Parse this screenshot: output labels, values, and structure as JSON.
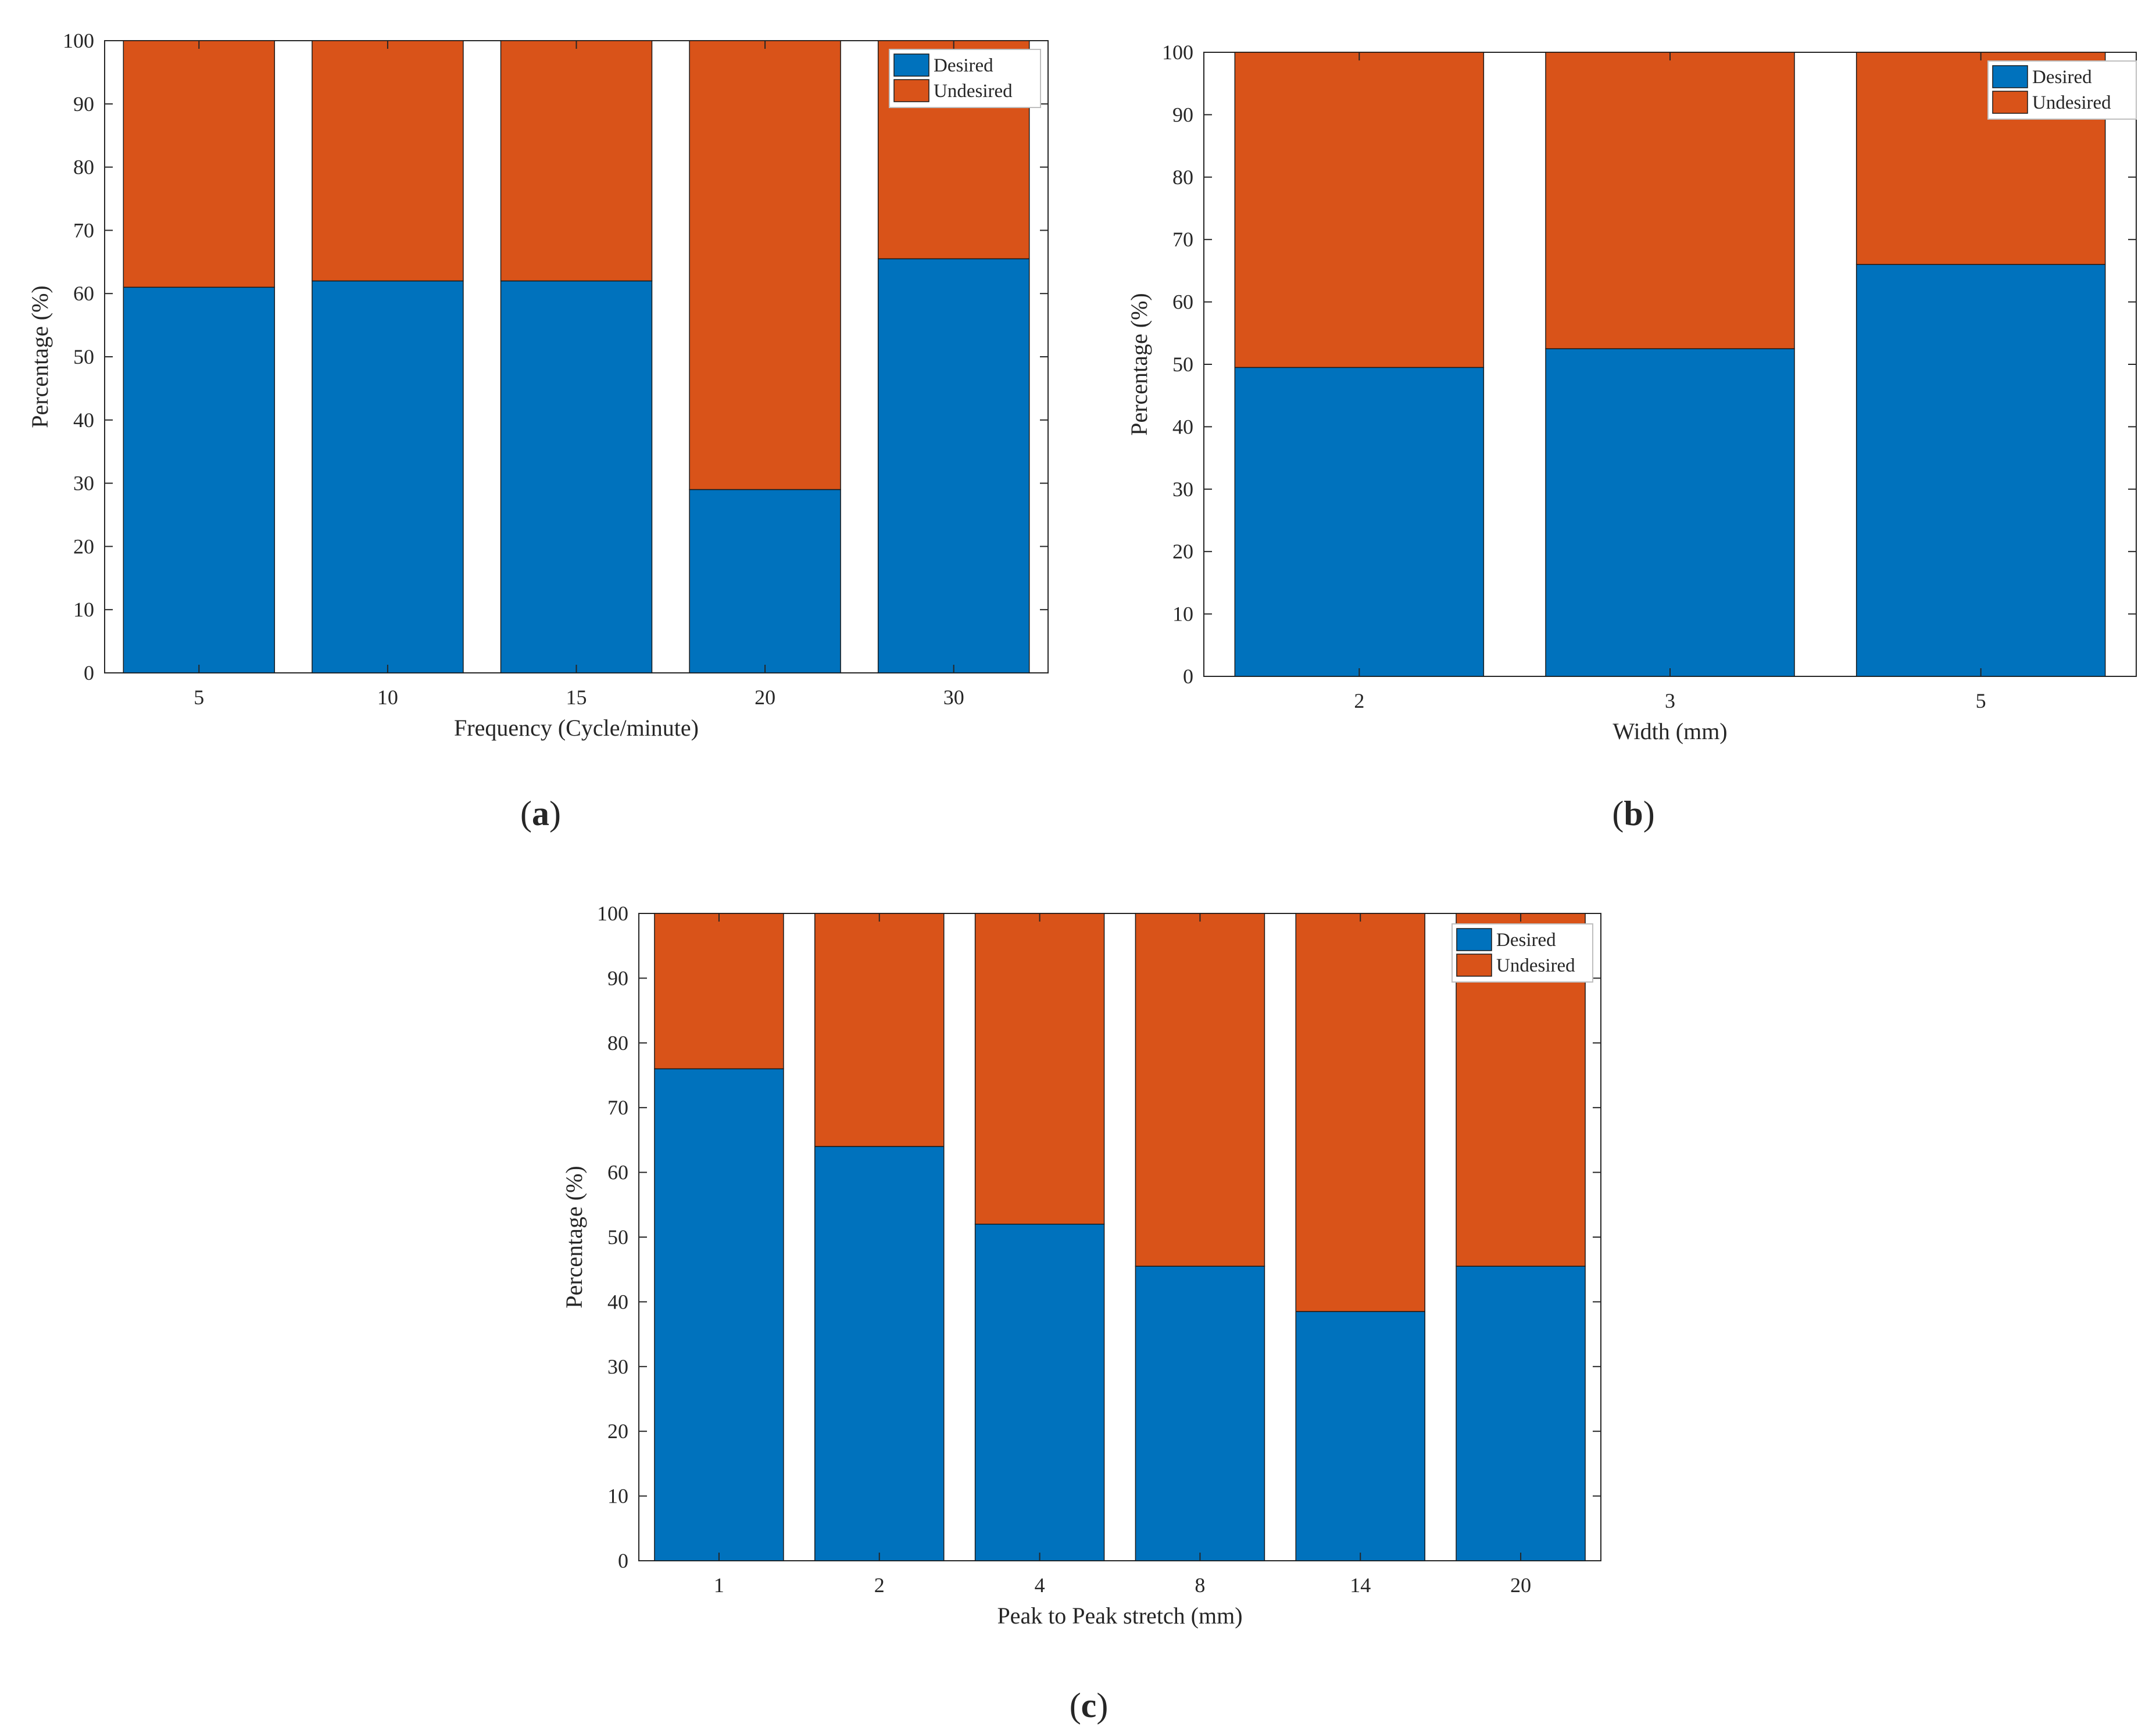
{
  "colors": {
    "desired": "#0072bd",
    "undesired": "#d95319",
    "axis": "#262626",
    "bar_edge": "#1a1a1a"
  },
  "chart_data": [
    {
      "type": "bar",
      "stacked": true,
      "caption": "a",
      "categories": [
        "5",
        "10",
        "15",
        "20",
        "30"
      ],
      "series": [
        {
          "name": "Desired",
          "values": [
            61,
            62,
            62,
            29,
            65.5
          ]
        },
        {
          "name": "Undesired",
          "values": [
            39,
            38,
            38,
            71,
            34.5
          ]
        }
      ],
      "xlabel": "Frequency (Cycle/minute)",
      "ylabel": "Percentage (%)",
      "ylim": [
        0,
        100
      ],
      "yticks": [
        "0",
        "10",
        "20",
        "30",
        "40",
        "50",
        "60",
        "70",
        "80",
        "90",
        "100"
      ],
      "grid": false,
      "legend": "top-right"
    },
    {
      "type": "bar",
      "stacked": true,
      "caption": "b",
      "categories": [
        "2",
        "3",
        "5"
      ],
      "series": [
        {
          "name": "Desired",
          "values": [
            49.5,
            52.5,
            66
          ]
        },
        {
          "name": "Undesired",
          "values": [
            50.5,
            47.5,
            34
          ]
        }
      ],
      "xlabel": "Width (mm)",
      "ylabel": "Percentage (%)",
      "ylim": [
        0,
        100
      ],
      "yticks": [
        "0",
        "10",
        "20",
        "30",
        "40",
        "50",
        "60",
        "70",
        "80",
        "90",
        "100"
      ],
      "grid": false,
      "legend": "top-right"
    },
    {
      "type": "bar",
      "stacked": true,
      "caption": "c",
      "categories": [
        "1",
        "2",
        "4",
        "8",
        "14",
        "20"
      ],
      "series": [
        {
          "name": "Desired",
          "values": [
            76,
            64,
            52,
            45.5,
            38.5,
            45.5
          ]
        },
        {
          "name": "Undesired",
          "values": [
            24,
            36,
            48,
            54.5,
            61.5,
            54.5
          ]
        }
      ],
      "xlabel": "Peak to Peak stretch (mm)",
      "ylabel": "Percentage (%)",
      "ylim": [
        0,
        100
      ],
      "yticks": [
        "0",
        "10",
        "20",
        "30",
        "40",
        "50",
        "60",
        "70",
        "80",
        "90",
        "100"
      ],
      "grid": false,
      "legend": "top-right"
    }
  ]
}
